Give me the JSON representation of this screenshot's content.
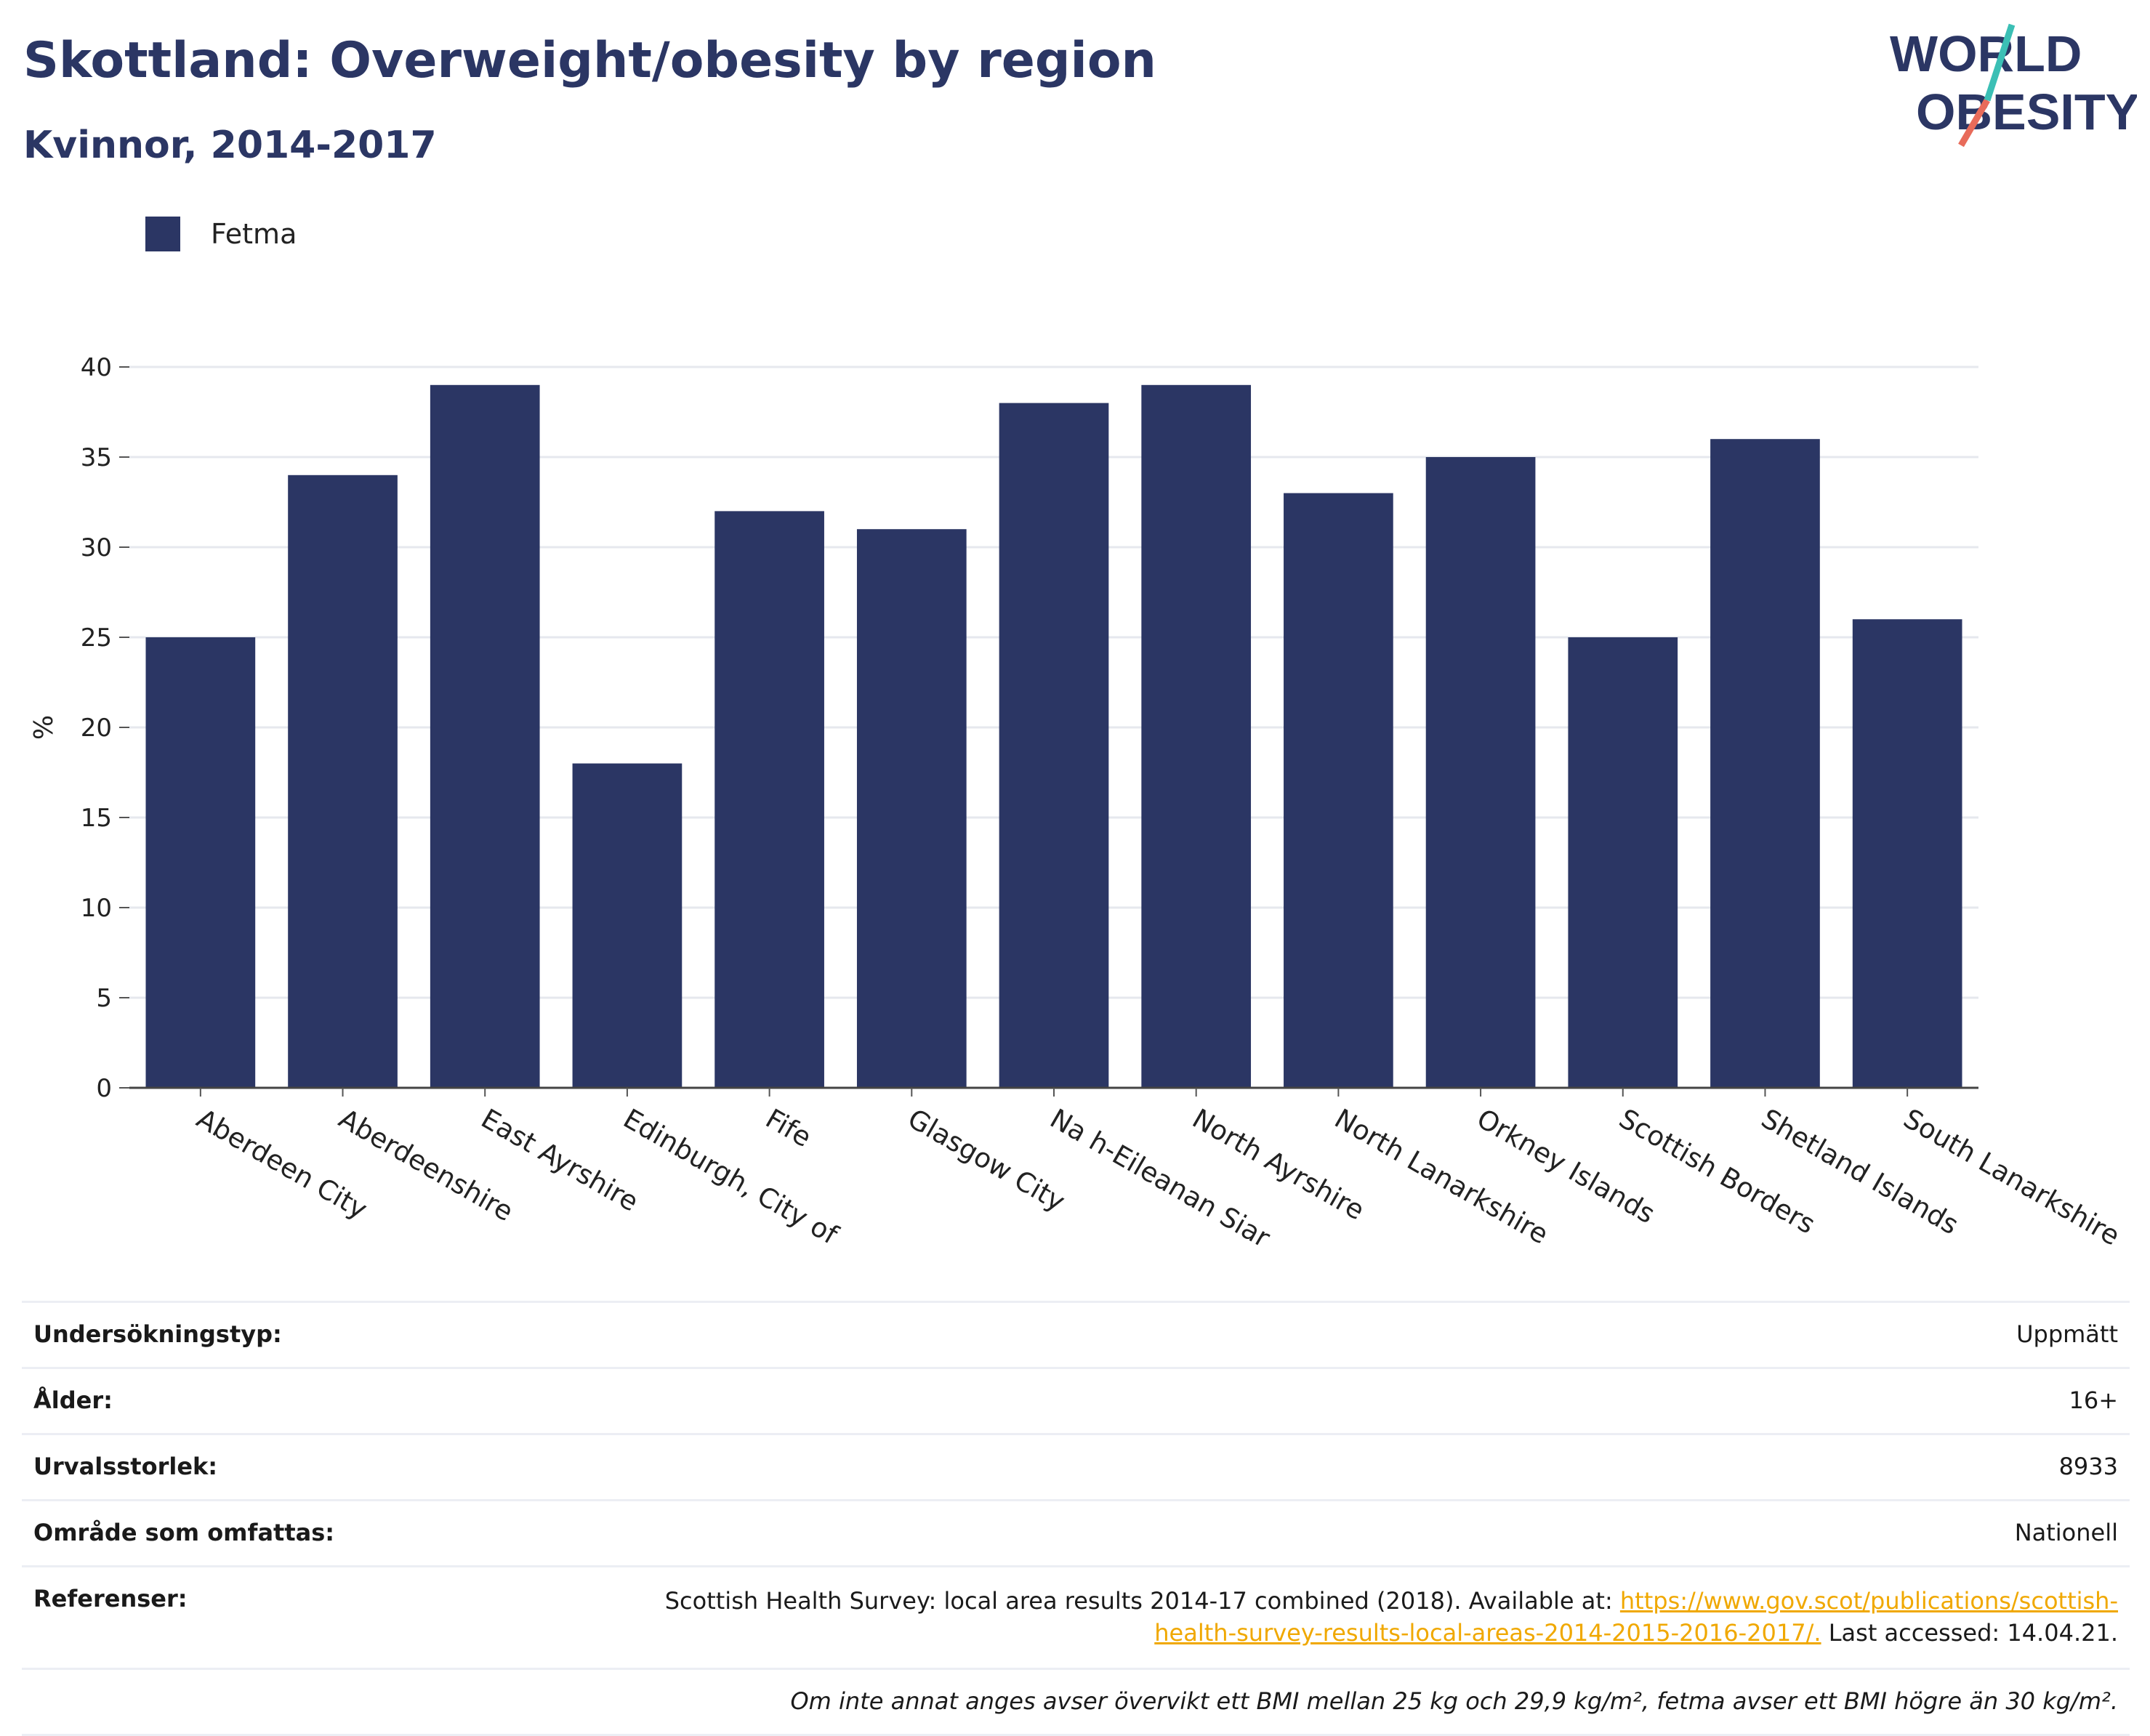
{
  "header": {
    "title": "Skottland: Overweight/obesity by region",
    "subtitle": "Kvinnor, 2014-2017"
  },
  "logo": {
    "line1": "WORLD",
    "line2": "OBESITY",
    "accent_colors": [
      "#3bbfb5",
      "#e86b5a"
    ]
  },
  "legend": {
    "label": "Fetma",
    "color": "#2b3664"
  },
  "chart_data": {
    "type": "bar",
    "title": "Skottland: Overweight/obesity by region",
    "subtitle": "Kvinnor, 2014-2017",
    "ylabel": "%",
    "xlabel": "",
    "ylim": [
      0,
      40
    ],
    "yticks": [
      0,
      5,
      10,
      15,
      20,
      25,
      30,
      35,
      40
    ],
    "grid": true,
    "legend_position": "top-left",
    "categories": [
      "Aberdeen City",
      "Aberdeenshire",
      "East Ayrshire",
      "Edinburgh, City of",
      "Fife",
      "Glasgow City",
      "Na h-Eileanan Siar",
      "North Ayrshire",
      "North Lanarkshire",
      "Orkney Islands",
      "Scottish Borders",
      "Shetland Islands",
      "South Lanarkshire"
    ],
    "series": [
      {
        "name": "Fetma",
        "color": "#2b3664",
        "values": [
          25,
          34,
          39,
          18,
          32,
          31,
          38,
          39,
          33,
          35,
          25,
          36,
          26
        ]
      }
    ]
  },
  "info": {
    "rows": [
      {
        "label": "Undersökningstyp:",
        "value": "Uppmätt"
      },
      {
        "label": "Ålder:",
        "value": "16+"
      },
      {
        "label": "Urvalsstorlek:",
        "value": "8933"
      },
      {
        "label": "Område som omfattas:",
        "value": "Nationell"
      }
    ],
    "references": {
      "label": "Referenser:",
      "text_before": "Scottish Health Survey: local area results 2014-17 combined (2018). Available at: ",
      "link": "https://www.gov.scot/publications/scottish-health-survey-results-local-areas-2014-2015-2016-2017/.",
      "text_after": " Last accessed: 14.04.21."
    },
    "note": "Om inte annat anges avser övervikt ett BMI mellan 25 kg och 29,9 kg/m², fetma avser ett BMI högre än 30 kg/m²."
  }
}
